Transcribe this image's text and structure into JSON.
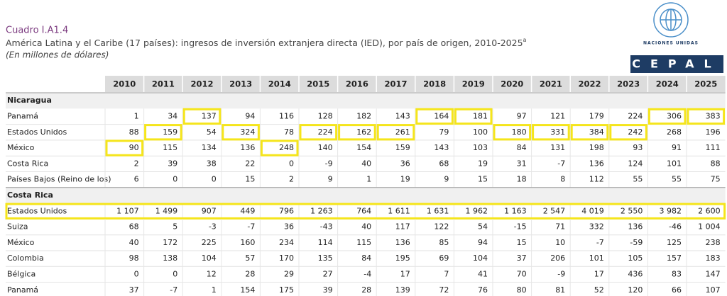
{
  "header": {
    "title": "Cuadro I.A1.4",
    "subtitle": "América Latina y el Caribe (17 países): ingresos de inversión extranjera directa (IED), por país de origen, 2010-2025",
    "subtitle_note": "a",
    "unit_note": "(En millones de dólares)"
  },
  "logo": {
    "emblem_text": "NACIONES UNIDAS",
    "name": "CEPAL"
  },
  "table": {
    "columns": [
      "2010",
      "2011",
      "2012",
      "2013",
      "2014",
      "2015",
      "2016",
      "2017",
      "2018",
      "2019",
      "2020",
      "2021",
      "2022",
      "2023",
      "2024",
      "2025"
    ],
    "groups": [
      {
        "name": "Nicaragua",
        "rows": [
          {
            "label": "Panamá",
            "values": [
              "1",
              "34",
              "137",
              "94",
              "116",
              "128",
              "182",
              "143",
              "164",
              "181",
              "97",
              "121",
              "179",
              "224",
              "306",
              "383"
            ],
            "highlight": [
              2,
              8,
              9,
              14,
              15
            ]
          },
          {
            "label": "Estados Unidos",
            "values": [
              "88",
              "159",
              "54",
              "324",
              "78",
              "224",
              "162",
              "261",
              "79",
              "100",
              "180",
              "331",
              "384",
              "242",
              "268",
              "196"
            ],
            "highlight": [
              1,
              3,
              5,
              6,
              7,
              10,
              11,
              12,
              13
            ]
          },
          {
            "label": "México",
            "values": [
              "90",
              "115",
              "134",
              "136",
              "248",
              "140",
              "154",
              "159",
              "143",
              "103",
              "84",
              "131",
              "198",
              "93",
              "91",
              "111"
            ],
            "highlight": [
              0,
              4
            ]
          },
          {
            "label": "Costa Rica",
            "values": [
              "2",
              "39",
              "38",
              "22",
              "0",
              "-9",
              "40",
              "36",
              "68",
              "19",
              "31",
              "-7",
              "136",
              "124",
              "101",
              "88"
            ]
          },
          {
            "label": "Países Bajos (Reino de los)",
            "values": [
              "6",
              "0",
              "0",
              "15",
              "2",
              "9",
              "1",
              "19",
              "9",
              "15",
              "18",
              "8",
              "112",
              "55",
              "55",
              "75"
            ]
          }
        ]
      },
      {
        "name": "Costa Rica",
        "rows": [
          {
            "label": "Estados Unidos",
            "values": [
              "1 107",
              "1 499",
              "907",
              "449",
              "796",
              "1 263",
              "764",
              "1 611",
              "1 631",
              "1 962",
              "1 163",
              "2 547",
              "4 019",
              "2 550",
              "3 982",
              "2 600"
            ],
            "row_box": true
          },
          {
            "label": "Suiza",
            "values": [
              "68",
              "5",
              "-3",
              "-7",
              "36",
              "-43",
              "40",
              "117",
              "122",
              "54",
              "-15",
              "71",
              "332",
              "136",
              "-46",
              "1 004"
            ]
          },
          {
            "label": "México",
            "values": [
              "40",
              "172",
              "225",
              "160",
              "234",
              "114",
              "115",
              "136",
              "85",
              "94",
              "15",
              "10",
              "-7",
              "-59",
              "125",
              "238"
            ]
          },
          {
            "label": "Colombia",
            "values": [
              "98",
              "138",
              "104",
              "57",
              "170",
              "135",
              "84",
              "195",
              "69",
              "104",
              "37",
              "206",
              "101",
              "105",
              "157",
              "183"
            ]
          },
          {
            "label": "Bélgica",
            "values": [
              "0",
              "0",
              "12",
              "28",
              "29",
              "27",
              "-4",
              "17",
              "7",
              "41",
              "70",
              "-9",
              "17",
              "436",
              "83",
              "147"
            ]
          },
          {
            "label": "Panamá",
            "values": [
              "37",
              "-7",
              "1",
              "154",
              "175",
              "39",
              "28",
              "139",
              "72",
              "76",
              "80",
              "81",
              "52",
              "120",
              "66",
              "107"
            ]
          }
        ]
      }
    ]
  }
}
